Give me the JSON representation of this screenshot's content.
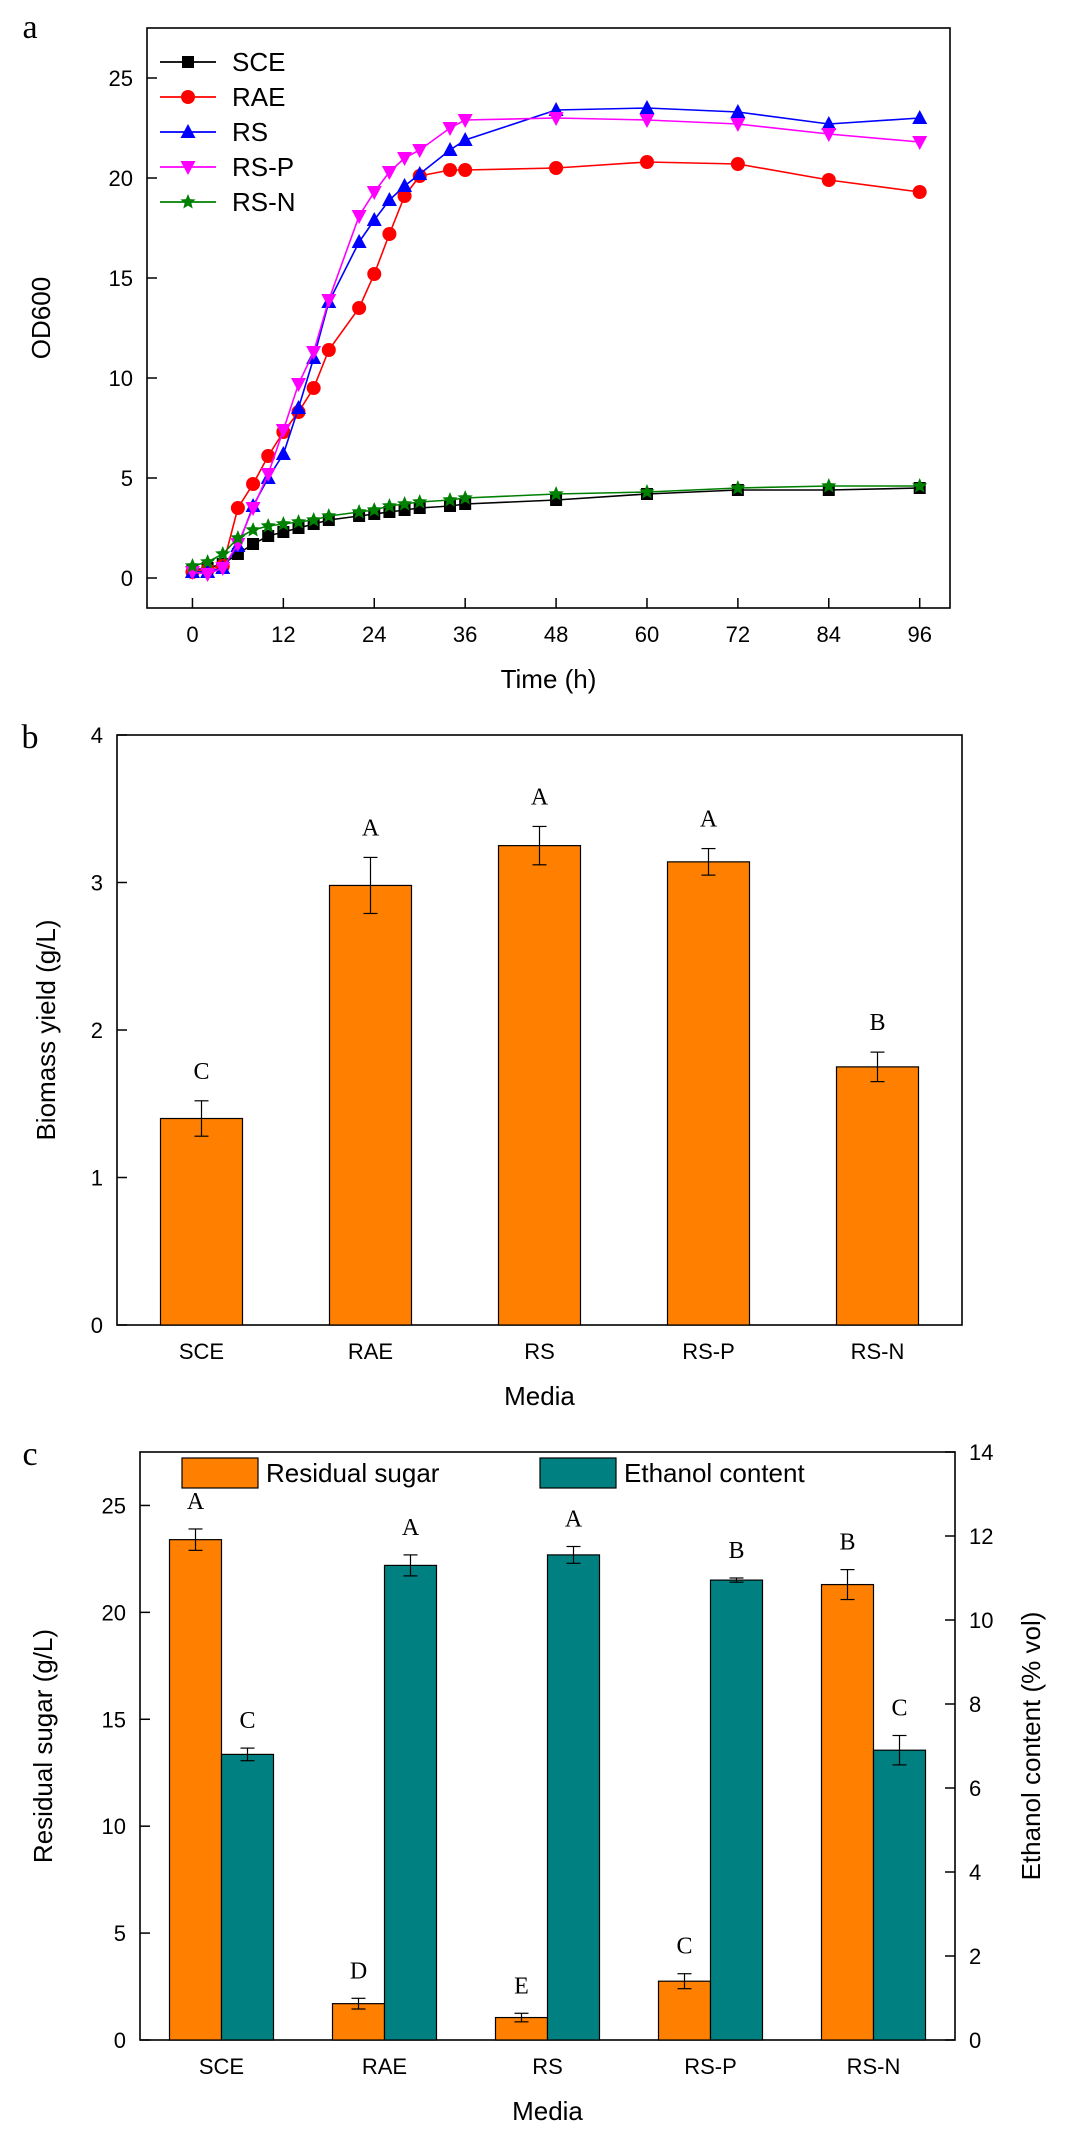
{
  "chart_data": [
    {
      "panel_label": "a",
      "type": "line",
      "title": "",
      "xlabel": "Time (h)",
      "ylabel": "OD600",
      "xlim": [
        -6,
        100
      ],
      "ylim": [
        -1.5,
        27.5
      ],
      "xticks": [
        0,
        12,
        24,
        36,
        48,
        60,
        72,
        84,
        96
      ],
      "yticks": [
        0,
        5,
        10,
        15,
        20,
        25
      ],
      "grid": false,
      "legend_position": "top-left",
      "series": [
        {
          "name": "SCE",
          "color": "#000000",
          "marker": "square",
          "x": [
            0,
            2,
            4,
            6,
            8,
            10,
            12,
            14,
            16,
            18,
            22,
            24,
            26,
            28,
            30,
            34,
            36,
            48,
            60,
            72,
            84,
            96
          ],
          "y": [
            0.4,
            0.5,
            0.7,
            1.2,
            1.7,
            2.1,
            2.3,
            2.5,
            2.7,
            2.9,
            3.1,
            3.2,
            3.3,
            3.4,
            3.5,
            3.6,
            3.7,
            3.9,
            4.2,
            4.4,
            4.4,
            4.5
          ]
        },
        {
          "name": "RAE",
          "color": "#ff0000",
          "marker": "circle",
          "x": [
            0,
            2,
            4,
            6,
            8,
            10,
            12,
            14,
            16,
            18,
            22,
            24,
            26,
            28,
            30,
            34,
            36,
            48,
            60,
            72,
            84,
            96
          ],
          "y": [
            0.3,
            0.4,
            0.6,
            3.5,
            4.7,
            6.1,
            7.3,
            8.3,
            9.5,
            11.4,
            13.5,
            15.2,
            17.2,
            19.1,
            20.1,
            20.4,
            20.4,
            20.5,
            20.8,
            20.7,
            19.9,
            19.3
          ]
        },
        {
          "name": "RS",
          "color": "#0000ff",
          "marker": "triangle-up",
          "x": [
            0,
            2,
            4,
            6,
            8,
            10,
            12,
            14,
            16,
            18,
            22,
            24,
            26,
            28,
            30,
            34,
            36,
            48,
            60,
            72,
            84,
            96
          ],
          "y": [
            0.3,
            0.3,
            0.5,
            1.6,
            3.6,
            5.0,
            6.2,
            8.5,
            11.0,
            13.8,
            16.8,
            17.9,
            18.9,
            19.6,
            20.2,
            21.4,
            21.9,
            23.4,
            23.5,
            23.3,
            22.7,
            23.0
          ]
        },
        {
          "name": "RS-P",
          "color": "#ff00ff",
          "marker": "triangle-down",
          "x": [
            0,
            2,
            4,
            6,
            8,
            10,
            12,
            14,
            16,
            18,
            22,
            24,
            26,
            28,
            30,
            34,
            36,
            48,
            60,
            72,
            84,
            96
          ],
          "y": [
            0.3,
            0.2,
            0.5,
            1.7,
            3.5,
            5.2,
            7.4,
            9.7,
            11.3,
            13.9,
            18.1,
            19.3,
            20.3,
            21.0,
            21.4,
            22.5,
            22.9,
            23.0,
            22.9,
            22.7,
            22.2,
            21.8
          ]
        },
        {
          "name": "RS-N",
          "color": "#008000",
          "marker": "star",
          "x": [
            0,
            2,
            4,
            6,
            8,
            10,
            12,
            14,
            16,
            18,
            22,
            24,
            26,
            28,
            30,
            34,
            36,
            48,
            60,
            72,
            84,
            96
          ],
          "y": [
            0.6,
            0.8,
            1.2,
            2.0,
            2.4,
            2.6,
            2.7,
            2.8,
            2.9,
            3.1,
            3.3,
            3.4,
            3.6,
            3.7,
            3.8,
            3.9,
            4.0,
            4.2,
            4.3,
            4.5,
            4.6,
            4.6
          ]
        }
      ]
    },
    {
      "panel_label": "b",
      "type": "bar",
      "title": "",
      "xlabel": "Media",
      "ylabel": "Biomass yield (g/L)",
      "ylim": [
        0,
        4
      ],
      "yticks": [
        0,
        1,
        2,
        3,
        4
      ],
      "categories": [
        "SCE",
        "RAE",
        "RS",
        "RS-P",
        "RS-N"
      ],
      "values": [
        1.4,
        2.98,
        3.25,
        3.14,
        1.75
      ],
      "errors": [
        0.12,
        0.19,
        0.13,
        0.09,
        0.1
      ],
      "letters": [
        "C",
        "A",
        "A",
        "A",
        "B"
      ],
      "color": "#ff8000",
      "grid": false
    },
    {
      "panel_label": "c",
      "type": "bar",
      "title": "",
      "xlabel": "Media",
      "ylabel": "Residual sugar (g/L)",
      "ylabel_right": "Ethanol content (% vol)",
      "ylim": [
        0,
        27.5
      ],
      "ylim_right": [
        0,
        14
      ],
      "yticks": [
        0,
        5,
        10,
        15,
        20,
        25
      ],
      "yticks_right": [
        0,
        2,
        4,
        6,
        8,
        10,
        12,
        14
      ],
      "categories": [
        "SCE",
        "RAE",
        "RS",
        "RS-P",
        "RS-N"
      ],
      "legend_position": "top",
      "grid": false,
      "series": [
        {
          "name": "Residual sugar",
          "axis": "left",
          "color": "#ff8000",
          "values": [
            23.4,
            1.7,
            1.05,
            2.75,
            21.3
          ],
          "errors": [
            0.5,
            0.25,
            0.2,
            0.35,
            0.7
          ],
          "letters": [
            "A",
            "D",
            "E",
            "C",
            "B"
          ]
        },
        {
          "name": "Ethanol content",
          "axis": "right",
          "color": "#008080",
          "values": [
            6.8,
            11.3,
            11.55,
            10.95,
            6.9
          ],
          "errors": [
            0.15,
            0.25,
            0.2,
            0.05,
            0.35
          ],
          "letters": [
            "C",
            "A",
            "A",
            "B",
            "C"
          ]
        }
      ]
    }
  ]
}
